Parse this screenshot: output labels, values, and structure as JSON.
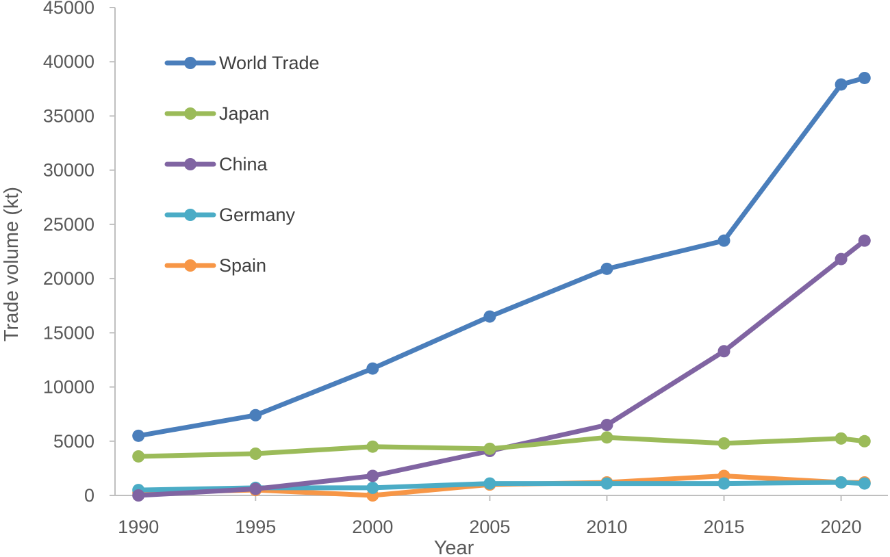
{
  "chart_data": {
    "type": "line",
    "title": "",
    "xlabel": "Year",
    "ylabel": "Trade volume (kt)",
    "xlim": [
      1989,
      2022
    ],
    "ylim": [
      0,
      45000
    ],
    "x_ticks": [
      1990,
      1995,
      2000,
      2005,
      2010,
      2015,
      2020
    ],
    "x_tick_labels": [
      "1990",
      "1995",
      "2000",
      "2005",
      "2010",
      "2015",
      "2020"
    ],
    "y_ticks": [
      0,
      5000,
      10000,
      15000,
      20000,
      25000,
      30000,
      35000,
      40000,
      45000
    ],
    "y_tick_labels": [
      "0",
      "5000",
      "10000",
      "15000",
      "20000",
      "25000",
      "30000",
      "35000",
      "40000",
      "45000"
    ],
    "grid": false,
    "legend_position": "top-left",
    "x": [
      1990,
      1995,
      2000,
      2005,
      2010,
      2015,
      2020,
      2021
    ],
    "series": [
      {
        "name": "World Trade",
        "color": "#4a7ebb",
        "values": [
          5500,
          7400,
          11700,
          16500,
          20900,
          23500,
          37900,
          38500
        ]
      },
      {
        "name": "Japan",
        "color": "#9bbb59",
        "values": [
          3600,
          3850,
          4500,
          4300,
          5350,
          4800,
          5250,
          5000
        ]
      },
      {
        "name": "China",
        "color": "#8064a2",
        "values": [
          0,
          600,
          1800,
          4100,
          6500,
          13300,
          21800,
          23500
        ]
      },
      {
        "name": "Germany",
        "color": "#4bacc6",
        "values": [
          500,
          700,
          700,
          1100,
          1100,
          1100,
          1200,
          1100
        ]
      },
      {
        "name": "Spain",
        "color": "#f79646",
        "values": [
          250,
          500,
          0,
          1000,
          1200,
          1800,
          1200,
          1200
        ]
      }
    ]
  }
}
